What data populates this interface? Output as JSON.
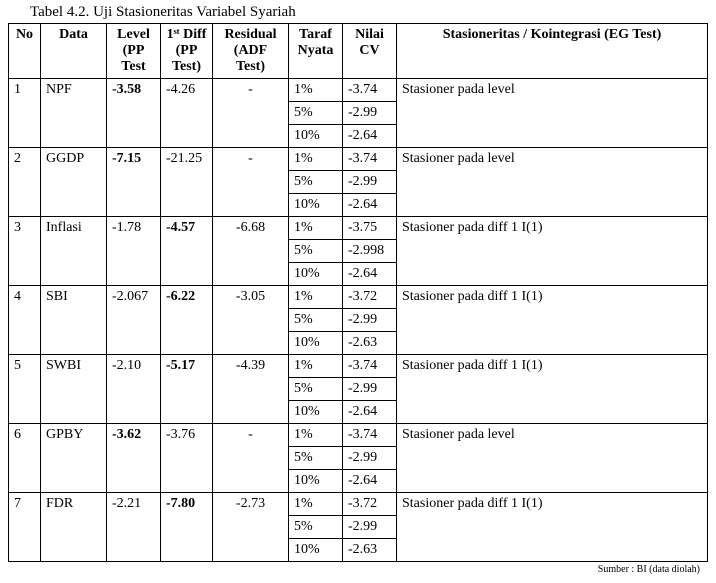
{
  "caption": "Tabel 4.2. Uji Stasioneritas Variabel Syariah",
  "headers": {
    "no": "No",
    "data": "Data",
    "level": "Level (PP Test",
    "diff": "1ˢᵗ Diff (PP Test)",
    "resid": "Residual (ADF Test)",
    "taraf": "Taraf Nyata",
    "cv": "Nilai CV",
    "stat": "Stasioneritas / Kointegrasi (EG Test)"
  },
  "rows": [
    {
      "no": "1",
      "data": "NPF",
      "level": "-3.58",
      "level_bold": true,
      "diff": "-4.26",
      "diff_bold": false,
      "resid": "-",
      "resid_bold": false,
      "cv": [
        {
          "taraf": "1%",
          "val": "-3.74"
        },
        {
          "taraf": "5%",
          "val": "-2.99"
        },
        {
          "taraf": "10%",
          "val": "-2.64"
        }
      ],
      "stat": "Stasioner pada level"
    },
    {
      "no": "2",
      "data": "GGDP",
      "level": "-7.15",
      "level_bold": true,
      "diff": "-21.25",
      "diff_bold": false,
      "resid": "-",
      "resid_bold": false,
      "cv": [
        {
          "taraf": "1%",
          "val": "-3.74"
        },
        {
          "taraf": "5%",
          "val": "-2.99"
        },
        {
          "taraf": "10%",
          "val": "-2.64"
        }
      ],
      "stat": "Stasioner pada level"
    },
    {
      "no": "3",
      "data": "Inflasi",
      "level": "-1.78",
      "level_bold": false,
      "diff": "-4.57",
      "diff_bold": true,
      "resid": "-6.68",
      "resid_bold": false,
      "cv": [
        {
          "taraf": "1%",
          "val": "-3.75"
        },
        {
          "taraf": "5%",
          "val": "-2.998"
        },
        {
          "taraf": "10%",
          "val": "-2.64"
        }
      ],
      "stat": "Stasioner pada diff 1 I(1)"
    },
    {
      "no": "4",
      "data": "SBI",
      "level": "-2.067",
      "level_bold": false,
      "diff": "-6.22",
      "diff_bold": true,
      "resid": "-3.05",
      "resid_bold": false,
      "cv": [
        {
          "taraf": "1%",
          "val": "-3.72"
        },
        {
          "taraf": "5%",
          "val": "-2.99"
        },
        {
          "taraf": "10%",
          "val": "-2.63"
        }
      ],
      "stat": "Stasioner pada diff 1 I(1)"
    },
    {
      "no": "5",
      "data": "SWBI",
      "level": "-2.10",
      "level_bold": false,
      "diff": "-5.17",
      "diff_bold": true,
      "resid": "-4.39",
      "resid_bold": false,
      "cv": [
        {
          "taraf": "1%",
          "val": "-3.74"
        },
        {
          "taraf": "5%",
          "val": "-2.99"
        },
        {
          "taraf": "10%",
          "val": "-2.64"
        }
      ],
      "stat": " Stasioner pada diff 1 I(1)"
    },
    {
      "no": "6",
      "data": "GPBY",
      "level": "-3.62",
      "level_bold": true,
      "diff": "-3.76",
      "diff_bold": false,
      "resid": "-",
      "resid_bold": false,
      "cv": [
        {
          "taraf": "1%",
          "val": "-3.74"
        },
        {
          "taraf": "5%",
          "val": "-2.99"
        },
        {
          "taraf": "10%",
          "val": "-2.64"
        }
      ],
      "stat": "Stasioner pada level"
    },
    {
      "no": "7",
      "data": "FDR",
      "level": "-2.21",
      "level_bold": false,
      "diff": "-7.80",
      "diff_bold": true,
      "resid": "-2.73",
      "resid_bold": false,
      "cv": [
        {
          "taraf": "1%",
          "val": "-3.72"
        },
        {
          "taraf": "5%",
          "val": "-2.99"
        },
        {
          "taraf": "10%",
          "val": "-2.63"
        }
      ],
      "stat": "Stasioner pada diff 1 I(1)"
    }
  ],
  "source": "Sumber : BI (data diolah)"
}
